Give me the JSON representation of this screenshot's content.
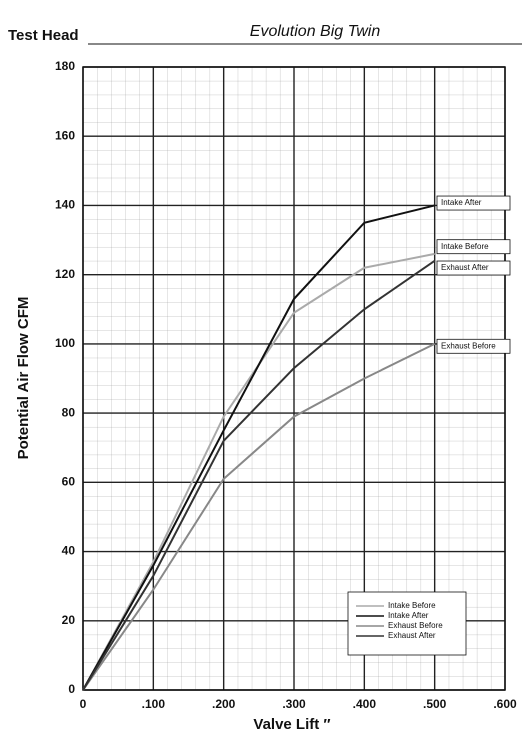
{
  "chart_data": {
    "type": "line",
    "title": "Test Head",
    "subtitle": "Evolution Big Twin",
    "x_label": "Valve Lift ″",
    "y_label": "Potential Air Flow CFM",
    "x": [
      0,
      0.1,
      0.2,
      0.3,
      0.4,
      0.5
    ],
    "series": [
      {
        "name": "Intake Before",
        "color": "#aaaaaa",
        "values": [
          0,
          37,
          79,
          109,
          122,
          126
        ]
      },
      {
        "name": "Intake After",
        "color": "#111111",
        "values": [
          0,
          36,
          75,
          113,
          135,
          140
        ]
      },
      {
        "name": "Exhaust Before",
        "color": "#888888",
        "values": [
          0,
          29,
          61,
          79,
          90,
          100
        ]
      },
      {
        "name": "Exhaust After",
        "color": "#333333",
        "values": [
          0,
          33,
          72,
          93,
          110,
          124
        ]
      }
    ],
    "xlim": [
      0,
      0.6
    ],
    "xticks": [
      0,
      {
        "value": 0.1,
        "label": ".100"
      },
      {
        "value": 0.2,
        "label": ".200"
      },
      {
        "value": 0.3,
        "label": ".300"
      },
      {
        "value": 0.4,
        "label": ".400"
      },
      {
        "value": 0.5,
        "label": ".500"
      },
      {
        "value": 0.6,
        "label": ".600"
      }
    ],
    "ylim": [
      0,
      180
    ],
    "yticks": [
      0,
      20,
      40,
      60,
      80,
      100,
      120,
      140,
      160,
      180
    ],
    "grid": true,
    "legend": "lower right"
  }
}
